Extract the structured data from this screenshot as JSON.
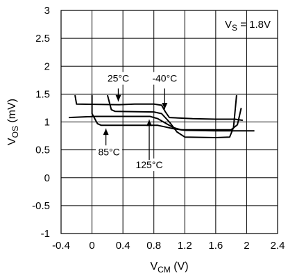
{
  "chart_data": {
    "type": "line",
    "xlabel": {
      "main": "V",
      "sub": "CM",
      "unit": " (V)"
    },
    "ylabel": {
      "main": "V",
      "sub": "OS",
      "unit": " (mV)"
    },
    "xlim": [
      -0.4,
      2.4
    ],
    "ylim": [
      -1,
      3
    ],
    "x_ticks": [
      -0.4,
      0,
      0.4,
      0.8,
      1.2,
      1.6,
      2,
      2.4
    ],
    "x_tick_labels": [
      "-0.4",
      "0",
      "0.4",
      "0.8",
      "1.2",
      "1.6",
      "2",
      "2.4"
    ],
    "y_ticks": [
      -1,
      -0.5,
      0,
      0.5,
      1,
      1.5,
      2,
      2.5,
      3
    ],
    "y_tick_labels": [
      "-1",
      "-0.5",
      "0",
      "0.5",
      "1",
      "1.5",
      "2",
      "2.5",
      "3"
    ],
    "grid": true,
    "condition": {
      "main": "V",
      "sub": "S",
      "rest": " = 1.8V"
    },
    "line_color": "#000000",
    "series": [
      {
        "name": "25°C",
        "points": [
          [
            -0.22,
            1.48
          ],
          [
            -0.2,
            1.32
          ],
          [
            0.35,
            1.31
          ],
          [
            0.55,
            1.32
          ],
          [
            0.8,
            1.32
          ],
          [
            0.9,
            1.3
          ],
          [
            0.95,
            1.18
          ],
          [
            1.0,
            1.08
          ],
          [
            1.3,
            1.06
          ],
          [
            1.6,
            1.05
          ],
          [
            1.85,
            1.05
          ],
          [
            1.95,
            1.03
          ]
        ]
      },
      {
        "name": "-40°C",
        "points": [
          [
            0.2,
            1.48
          ],
          [
            0.25,
            1.22
          ],
          [
            0.3,
            1.19
          ],
          [
            0.8,
            1.18
          ],
          [
            0.9,
            1.15
          ],
          [
            1.0,
            1.0
          ],
          [
            1.1,
            0.82
          ],
          [
            1.2,
            0.73
          ],
          [
            1.6,
            0.72
          ],
          [
            1.78,
            0.73
          ],
          [
            1.83,
            0.9
          ],
          [
            1.87,
            1.48
          ]
        ]
      },
      {
        "name": "125°C",
        "points": [
          [
            -0.3,
            1.08
          ],
          [
            0.05,
            1.1
          ],
          [
            0.5,
            1.1
          ],
          [
            0.75,
            1.1
          ],
          [
            0.85,
            1.06
          ],
          [
            0.95,
            0.98
          ],
          [
            1.05,
            0.9
          ],
          [
            1.15,
            0.86
          ],
          [
            1.8,
            0.86
          ],
          [
            1.88,
            0.95
          ],
          [
            1.93,
            1.25
          ]
        ]
      },
      {
        "name": "85°C",
        "points": [
          [
            0.0,
            1.48
          ],
          [
            0.0,
            1.15
          ],
          [
            0.07,
            0.97
          ],
          [
            0.12,
            0.94
          ],
          [
            0.6,
            0.94
          ],
          [
            0.85,
            0.94
          ],
          [
            0.95,
            0.91
          ],
          [
            1.05,
            0.88
          ],
          [
            1.2,
            0.85
          ],
          [
            1.6,
            0.84
          ],
          [
            2.1,
            0.84
          ]
        ]
      }
    ],
    "annotations": [
      {
        "text": "25°C",
        "x": 0.34,
        "y": 1.72,
        "anchor": "middle",
        "arrow": [
          [
            0.34,
            1.6
          ],
          [
            0.34,
            1.37
          ]
        ]
      },
      {
        "text": "-40°C",
        "x": 0.94,
        "y": 1.72,
        "anchor": "middle",
        "arrow": [
          [
            0.94,
            1.6
          ],
          [
            0.94,
            1.23
          ]
        ]
      },
      {
        "text": "85°C",
        "x": 0.22,
        "y": 0.4,
        "anchor": "middle",
        "arrow": [
          [
            0.18,
            0.58
          ],
          [
            0.18,
            0.88
          ]
        ]
      },
      {
        "text": "125°C",
        "x": 0.74,
        "y": 0.17,
        "anchor": "middle",
        "arrow": [
          [
            0.74,
            0.32
          ],
          [
            0.74,
            1.04
          ]
        ]
      }
    ]
  }
}
